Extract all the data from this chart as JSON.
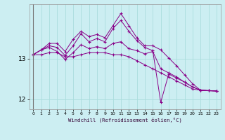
{
  "xlabel": "Windchill (Refroidissement éolien,°C)",
  "background_color": "#cceef2",
  "line_color": "#880088",
  "grid_color": "#aadddd",
  "x": [
    0,
    1,
    2,
    3,
    4,
    5,
    6,
    7,
    8,
    9,
    10,
    11,
    12,
    13,
    14,
    15,
    16,
    17,
    18,
    19,
    20,
    21,
    22,
    23
  ],
  "line1": [
    13.1,
    13.1,
    13.15,
    13.15,
    13.05,
    13.05,
    13.1,
    13.15,
    13.15,
    13.15,
    13.1,
    13.1,
    13.05,
    12.95,
    12.85,
    12.75,
    12.65,
    12.55,
    12.45,
    12.35,
    12.25,
    12.22,
    12.21,
    12.2
  ],
  "line2": [
    13.1,
    13.22,
    13.28,
    13.18,
    12.98,
    13.15,
    13.35,
    13.25,
    13.3,
    13.25,
    13.38,
    13.42,
    13.25,
    13.2,
    13.12,
    13.18,
    12.75,
    12.65,
    12.55,
    12.42,
    12.3,
    12.22,
    12.21,
    12.2
  ],
  "line3": [
    13.1,
    13.22,
    13.32,
    13.28,
    13.08,
    13.32,
    13.62,
    13.42,
    13.5,
    13.42,
    13.75,
    13.95,
    13.68,
    13.45,
    13.28,
    13.2,
    11.92,
    12.62,
    12.52,
    12.42,
    12.3,
    12.22,
    12.21,
    12.2
  ],
  "line4": [
    13.1,
    13.22,
    13.38,
    13.38,
    13.18,
    13.48,
    13.68,
    13.55,
    13.6,
    13.52,
    13.82,
    14.12,
    13.82,
    13.52,
    13.32,
    13.32,
    13.22,
    13.02,
    12.82,
    12.6,
    12.38,
    12.22,
    12.21,
    12.2
  ],
  "ylim": [
    11.75,
    14.35
  ],
  "yticks": [
    12,
    13
  ],
  "xlim": [
    -0.5,
    23.5
  ],
  "xticks": [
    0,
    1,
    2,
    3,
    4,
    5,
    6,
    7,
    8,
    9,
    10,
    11,
    12,
    13,
    14,
    15,
    16,
    17,
    18,
    19,
    20,
    21,
    22,
    23
  ]
}
